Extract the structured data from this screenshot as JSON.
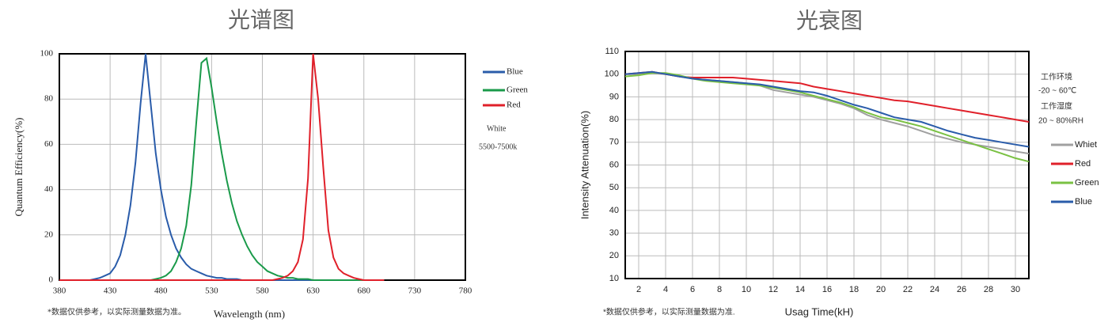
{
  "chart_data": [
    {
      "type": "line",
      "title": "光谱图",
      "x_label": "Wavelength (nm)",
      "y_label": "Quantum Efficiency(%)",
      "annotations": [
        "White",
        "5500-7500k",
        "*数据仅供参考，以实际测量数据为准。"
      ],
      "x": [
        380,
        385,
        390,
        395,
        400,
        405,
        410,
        415,
        420,
        425,
        430,
        435,
        440,
        445,
        450,
        455,
        460,
        465,
        470,
        475,
        480,
        485,
        490,
        495,
        500,
        505,
        510,
        515,
        520,
        525,
        530,
        535,
        540,
        545,
        550,
        555,
        560,
        565,
        570,
        575,
        580,
        585,
        590,
        595,
        600,
        605,
        610,
        615,
        620,
        625,
        630,
        635,
        640,
        645,
        650,
        655,
        660,
        665,
        670,
        675,
        680,
        685,
        690,
        695,
        700
      ],
      "series": [
        {
          "name": "Blue",
          "color": "#2a5caa",
          "values": [
            0,
            0,
            0,
            0,
            0,
            0,
            0,
            0.5,
            1,
            2,
            3,
            6,
            11,
            20,
            33,
            52,
            78,
            100,
            78,
            56,
            40,
            28,
            20,
            14,
            10,
            7,
            5,
            4,
            3,
            2,
            1.5,
            1,
            1,
            0.5,
            0.5,
            0.5,
            0,
            0,
            0,
            0,
            0,
            0,
            0,
            0,
            0,
            0,
            0,
            0,
            0,
            0,
            0,
            0,
            0,
            0,
            0,
            0,
            0,
            0,
            0,
            0,
            0,
            0,
            0,
            0,
            0
          ]
        },
        {
          "name": "Green",
          "color": "#1a9a4a",
          "values": [
            0,
            0,
            0,
            0,
            0,
            0,
            0,
            0,
            0,
            0,
            0,
            0,
            0,
            0,
            0,
            0,
            0,
            0,
            0,
            0.5,
            1,
            2,
            4,
            8,
            14,
            24,
            42,
            70,
            96,
            98,
            85,
            70,
            56,
            44,
            34,
            26,
            20,
            15,
            11,
            8,
            6,
            4,
            3,
            2,
            1.5,
            1,
            1,
            0.5,
            0.5,
            0.5,
            0,
            0,
            0,
            0,
            0,
            0,
            0,
            0,
            0,
            0,
            0,
            0,
            0,
            0,
            0
          ]
        },
        {
          "name": "Red",
          "color": "#e0202a",
          "values": [
            0,
            0,
            0,
            0,
            0,
            0,
            0,
            0,
            0,
            0,
            0,
            0,
            0,
            0,
            0,
            0,
            0,
            0,
            0,
            0,
            0,
            0,
            0,
            0,
            0,
            0,
            0,
            0,
            0,
            0,
            0,
            0,
            0,
            0,
            0,
            0,
            0,
            0,
            0,
            0,
            0,
            0,
            0,
            0.5,
            1,
            2,
            4,
            8,
            18,
            45,
            100,
            80,
            50,
            22,
            10,
            5,
            3,
            2,
            1,
            0.5,
            0,
            0,
            0,
            0,
            0
          ]
        }
      ],
      "xlim": [
        380,
        780
      ],
      "xticks": [
        380,
        430,
        480,
        530,
        580,
        630,
        680,
        730,
        780
      ],
      "ylim": [
        0,
        100
      ],
      "yticks": [
        0,
        20,
        40,
        60,
        80,
        100
      ],
      "grid": true
    },
    {
      "type": "line",
      "title": "光衰图",
      "x_label": "Usag Time(kH)",
      "y_label": "Intensity Attenuation(%)",
      "annotations": [
        "工作环境",
        "-20 ~ 60℃",
        "工作湿度",
        "20 ~ 80%RH",
        "*数据仅供参考，以实际测量数据为准."
      ],
      "x": [
        1,
        2,
        3,
        4,
        5,
        6,
        7,
        8,
        9,
        10,
        11,
        12,
        13,
        14,
        15,
        16,
        17,
        18,
        19,
        20,
        21,
        22,
        23,
        24,
        25,
        26,
        27,
        28,
        29,
        30,
        31
      ],
      "series": [
        {
          "name": "Whiet",
          "color": "#a0a0a0",
          "values": [
            100,
            100,
            100.5,
            100,
            99,
            98,
            97.5,
            97,
            96.5,
            96,
            95,
            93,
            92,
            91,
            90,
            88.5,
            87,
            85,
            82,
            80,
            78.5,
            77,
            75,
            73,
            71.5,
            70,
            69,
            68,
            67,
            66,
            65
          ]
        },
        {
          "name": "Red",
          "color": "#e0202a",
          "values": [
            100,
            100.5,
            101,
            100,
            99,
            98.5,
            98.5,
            98.5,
            98.5,
            98,
            97.5,
            97,
            96.5,
            96,
            94.5,
            93.5,
            92.5,
            91.5,
            90.5,
            89.5,
            88.5,
            88,
            87,
            86,
            85,
            84,
            83,
            82,
            81,
            80,
            79
          ]
        },
        {
          "name": "Green",
          "color": "#7ac143",
          "values": [
            99,
            99.5,
            100.5,
            100.5,
            99.5,
            98,
            97,
            96.5,
            96,
            95.5,
            95,
            94,
            93,
            92,
            90.5,
            89,
            87.5,
            85.5,
            83,
            81,
            80,
            78.5,
            77,
            75,
            73,
            71,
            69,
            67,
            65,
            63,
            61.5
          ]
        },
        {
          "name": "Blue",
          "color": "#2a5caa",
          "values": [
            100,
            100.5,
            101,
            100,
            99,
            98,
            97.5,
            97,
            96.5,
            96,
            95.5,
            94.5,
            93.5,
            92.5,
            92,
            90.5,
            88.5,
            86.5,
            85,
            83,
            81,
            80,
            79,
            77,
            75,
            73.5,
            72,
            71,
            70,
            69,
            68
          ]
        }
      ],
      "xlim": [
        1,
        31
      ],
      "xticks": [
        2,
        4,
        6,
        8,
        10,
        12,
        14,
        16,
        18,
        20,
        22,
        24,
        26,
        28,
        30
      ],
      "ylim": [
        10,
        110
      ],
      "yticks": [
        10,
        20,
        30,
        40,
        50,
        60,
        70,
        80,
        90,
        100,
        110
      ],
      "grid": true
    }
  ]
}
